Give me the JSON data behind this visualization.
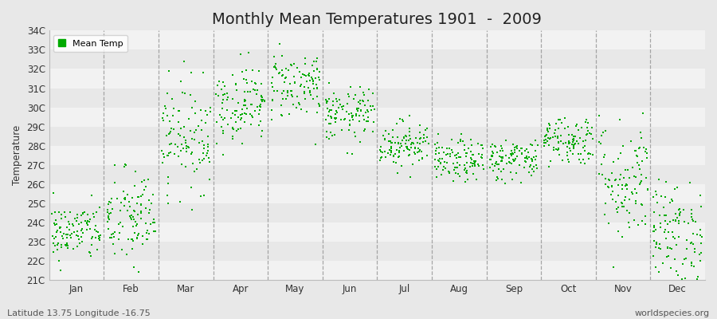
{
  "title": "Monthly Mean Temperatures 1901  -  2009",
  "ylabel": "Temperature",
  "ylim": [
    21,
    34
  ],
  "ytick_labels": [
    "21C",
    "22C",
    "23C",
    "24C",
    "25C",
    "26C",
    "27C",
    "28C",
    "29C",
    "30C",
    "31C",
    "32C",
    "33C",
    "34C"
  ],
  "ytick_values": [
    21,
    22,
    23,
    24,
    25,
    26,
    27,
    28,
    29,
    30,
    31,
    32,
    33,
    34
  ],
  "month_names": [
    "Jan",
    "Feb",
    "Mar",
    "Apr",
    "May",
    "Jun",
    "Jul",
    "Aug",
    "Sep",
    "Oct",
    "Nov",
    "Dec"
  ],
  "dot_color": "#00aa00",
  "bg_color": "#e8e8e8",
  "white_band_color": "#f2f2f2",
  "dashed_line_color": "#999999",
  "footnote_left": "Latitude 13.75 Longitude -16.75",
  "footnote_right": "worldspecies.org",
  "legend_label": "Mean Temp",
  "title_fontsize": 14,
  "label_fontsize": 8.5,
  "footnote_fontsize": 8,
  "monthly_means": [
    23.5,
    24.2,
    28.5,
    30.2,
    31.2,
    29.6,
    28.1,
    27.2,
    27.3,
    28.3,
    26.2,
    23.5
  ],
  "monthly_stds": [
    0.75,
    1.3,
    1.4,
    1.0,
    0.9,
    0.7,
    0.6,
    0.55,
    0.55,
    0.65,
    1.6,
    1.3
  ],
  "n_years": 109,
  "seed": 42,
  "dot_size": 4
}
